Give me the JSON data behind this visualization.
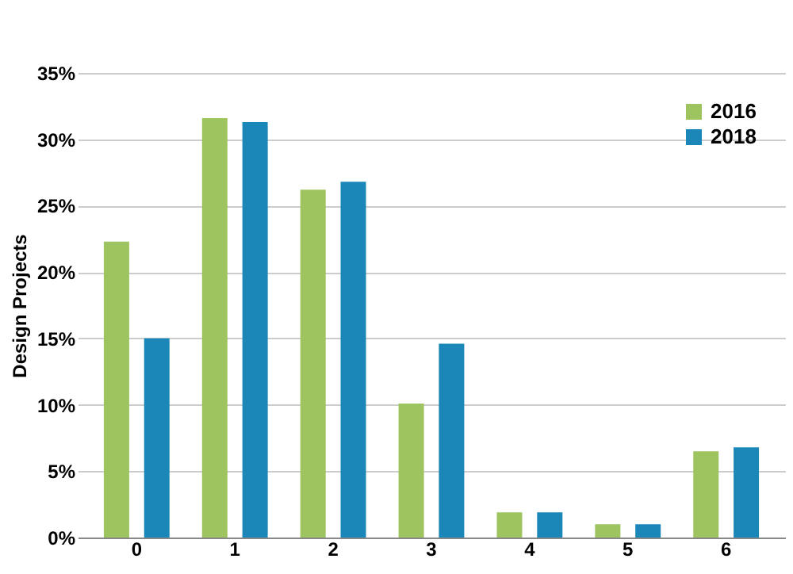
{
  "chart_data": {
    "type": "bar",
    "ylabel": "Design Projects",
    "categories": [
      "0",
      "1",
      "2",
      "3",
      "4",
      "5",
      "6"
    ],
    "series": [
      {
        "name": "2016",
        "color": "#9dc45f",
        "values": [
          22.3,
          31.6,
          26.2,
          10.1,
          1.9,
          1.0,
          6.5
        ]
      },
      {
        "name": "2018",
        "color": "#1a87b8",
        "values": [
          15.0,
          31.3,
          26.8,
          14.6,
          1.9,
          1.0,
          6.8
        ]
      }
    ],
    "ylim": [
      0,
      35
    ],
    "yticks": [
      {
        "value": 0,
        "label": "0%"
      },
      {
        "value": 5,
        "label": "5%"
      },
      {
        "value": 10,
        "label": "10%"
      },
      {
        "value": 15,
        "label": "15%"
      },
      {
        "value": 20,
        "label": "20%"
      },
      {
        "value": 25,
        "label": "25%"
      },
      {
        "value": 30,
        "label": "30%"
      },
      {
        "value": 35,
        "label": "35%"
      }
    ],
    "grid": "y",
    "legend": "top right"
  }
}
